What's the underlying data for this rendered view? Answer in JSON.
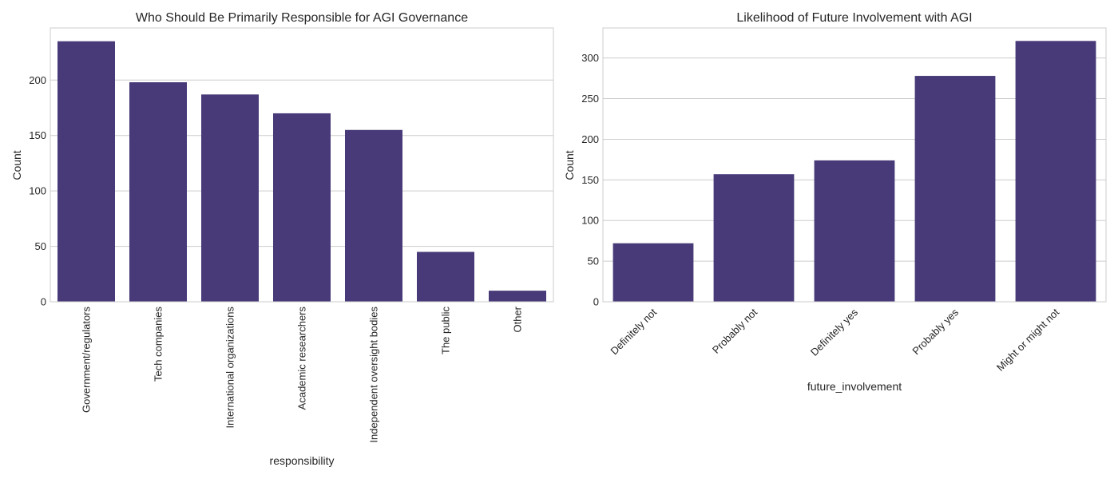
{
  "chart_data": [
    {
      "type": "bar",
      "title": "Who Should Be Primarily Responsible for AGI Governance",
      "xlabel": "responsibility",
      "ylabel": "Count",
      "categories": [
        "Government/regulators",
        "Tech companies",
        "International organizations",
        "Academic researchers",
        "Independent oversight bodies",
        "The public",
        "Other"
      ],
      "values": [
        235,
        198,
        187,
        170,
        155,
        45,
        10
      ],
      "ylim": [
        0,
        247
      ],
      "yticks": [
        0,
        50,
        100,
        150,
        200
      ],
      "xtick_rotation": 90,
      "grid": true,
      "bar_color": "#483a78"
    },
    {
      "type": "bar",
      "title": "Likelihood of Future Involvement with AGI",
      "xlabel": "future_involvement",
      "ylabel": "Count",
      "categories": [
        "Definitely not",
        "Probably not",
        "Definitely yes",
        "Probably yes",
        "Might or might not"
      ],
      "values": [
        72,
        157,
        174,
        278,
        321
      ],
      "ylim": [
        0,
        337
      ],
      "yticks": [
        0,
        50,
        100,
        150,
        200,
        250,
        300
      ],
      "xtick_rotation": 45,
      "grid": true,
      "bar_color": "#483a78"
    }
  ]
}
